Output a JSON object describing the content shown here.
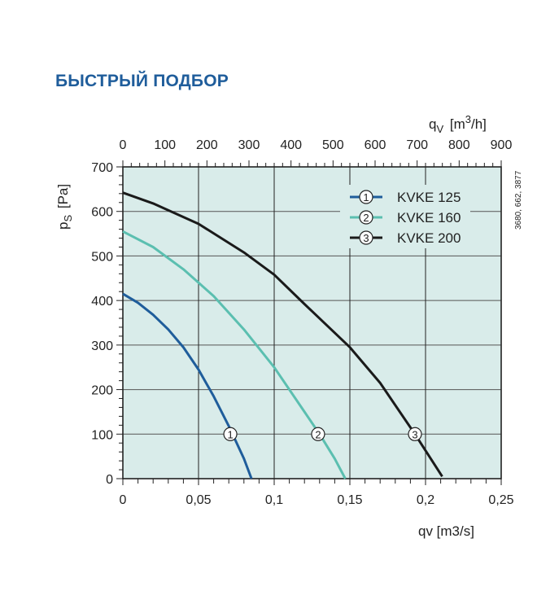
{
  "header": {
    "title": "БЫСТРЫЙ ПОДБОР"
  },
  "side_note": "3680, 662, 3877",
  "chart_data": {
    "type": "line",
    "xlabel": "qv [m3/s]",
    "xlabel_main": "q",
    "xlabel_sub": "V",
    "xlabel_unit": "[m",
    "xlabel_sup": "3",
    "xlabel_tail": "/s]",
    "x2label_main": "q",
    "x2label_sub": "V",
    "x2label_unit": "[m",
    "x2label_sup": "3",
    "x2label_tail": "/h]",
    "ylabel_main": "p",
    "ylabel_sub": "S",
    "ylabel_unit": "[Pa]",
    "xlim": [
      0,
      0.25
    ],
    "ylim": [
      0,
      700
    ],
    "x2lim": [
      0,
      900
    ],
    "xticks": [
      "0",
      "0,05",
      "0,1",
      "0,15",
      "0,2",
      "0,25"
    ],
    "xtick_values": [
      0,
      0.05,
      0.1,
      0.15,
      0.2,
      0.25
    ],
    "x2ticks": [
      "0",
      "100",
      "200",
      "300",
      "400",
      "500",
      "600",
      "700",
      "800",
      "900"
    ],
    "yticks": [
      "0",
      "100",
      "200",
      "300",
      "400",
      "500",
      "600",
      "700"
    ],
    "grid": true,
    "legend_position": "top-right",
    "series": [
      {
        "name": "KVKE 125",
        "marker": "1",
        "color": "#1f5d9b",
        "x": [
          0,
          0.01,
          0.02,
          0.03,
          0.04,
          0.05,
          0.06,
          0.07,
          0.08,
          0.085
        ],
        "y": [
          415,
          395,
          368,
          335,
          295,
          245,
          185,
          118,
          45,
          0
        ]
      },
      {
        "name": "KVKE 160",
        "marker": "2",
        "color": "#5bbfb0",
        "x": [
          0,
          0.02,
          0.04,
          0.06,
          0.08,
          0.1,
          0.12,
          0.13,
          0.14,
          0.147
        ],
        "y": [
          555,
          520,
          470,
          410,
          335,
          250,
          150,
          100,
          45,
          0
        ]
      },
      {
        "name": "KVKE 200",
        "marker": "3",
        "color": "#1a1a1a",
        "x": [
          0,
          0.02,
          0.05,
          0.08,
          0.1,
          0.12,
          0.15,
          0.17,
          0.193,
          0.211
        ],
        "y": [
          642,
          618,
          572,
          508,
          458,
          392,
          295,
          215,
          100,
          5
        ]
      }
    ],
    "marker_y": 100,
    "marker_x": [
      0.071,
      0.129,
      0.193
    ]
  }
}
